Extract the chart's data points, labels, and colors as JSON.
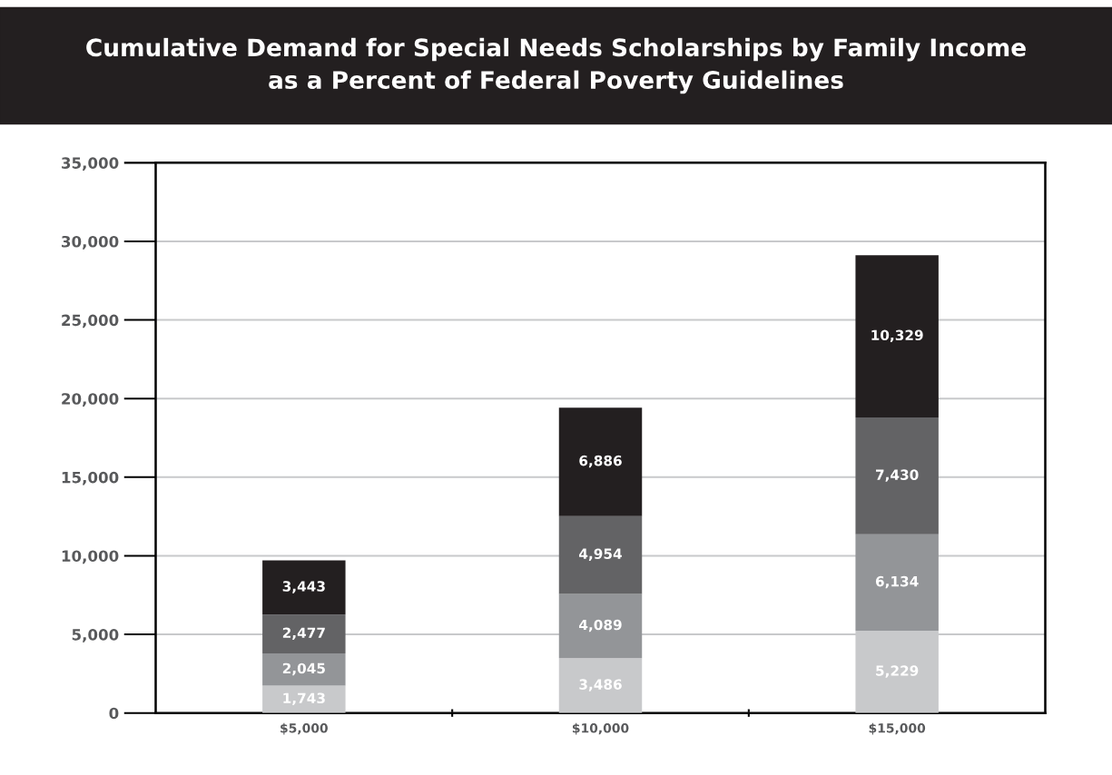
{
  "chart_data": {
    "type": "bar",
    "title": "Cumulative Demand for Special Needs Scholarships by Family Income\nas a Percent of Federal Poverty Guidelines",
    "categories": [
      "$5,000",
      "$10,000",
      "$15,000"
    ],
    "stacked": true,
    "series": [
      {
        "color": "#c8c9cb",
        "values": [
          1743,
          3486,
          5229
        ],
        "value_labels": [
          "1,743",
          "3,486",
          "5,229"
        ]
      },
      {
        "color": "#939598",
        "values": [
          2045,
          4089,
          6134
        ],
        "value_labels": [
          "2,045",
          "4,089",
          "6,134"
        ]
      },
      {
        "color": "#636365",
        "values": [
          2477,
          4954,
          7430
        ],
        "value_labels": [
          "2,477",
          "4,954",
          "7,430"
        ]
      },
      {
        "color": "#231f20",
        "values": [
          3443,
          6886,
          10329
        ],
        "value_labels": [
          "3,443",
          "6,886",
          "10,329"
        ]
      }
    ],
    "ylim": [
      0,
      35000
    ],
    "yticks": [
      {
        "value": 0,
        "label": "0"
      },
      {
        "value": 5000,
        "label": "5,000"
      },
      {
        "value": 10000,
        "label": "10,000"
      },
      {
        "value": 15000,
        "label": "15,000"
      },
      {
        "value": 20000,
        "label": "20,000"
      },
      {
        "value": 25000,
        "label": "25,000"
      },
      {
        "value": 30000,
        "label": "30,000"
      },
      {
        "value": 35000,
        "label": "35,000"
      }
    ],
    "grid": "y",
    "legend": false
  }
}
